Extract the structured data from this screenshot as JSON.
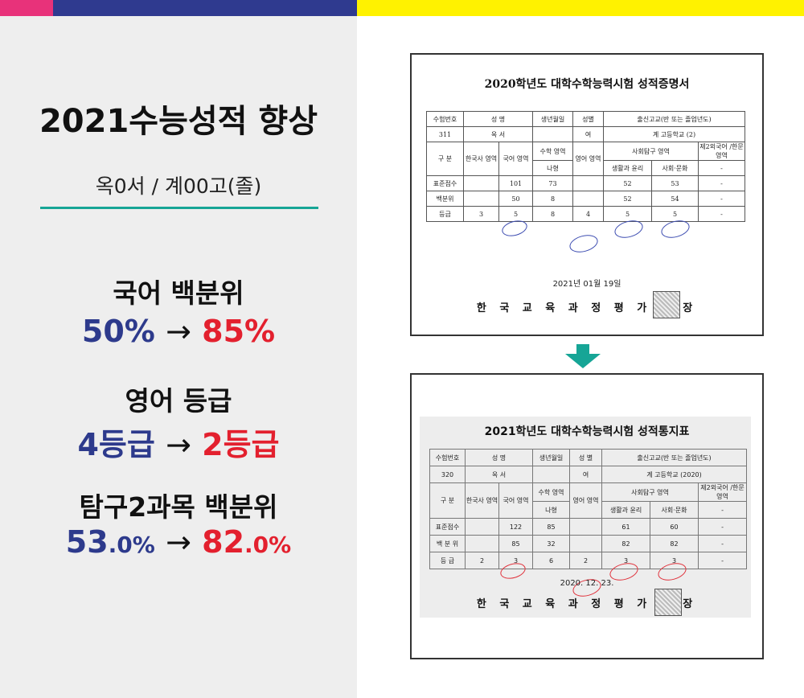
{
  "headline": {
    "title": "2021수능성적 향상",
    "student": "옥0서 / 계00고(졸)"
  },
  "stats": [
    {
      "label": "국어 백분위",
      "from": "50%",
      "arrow": "→",
      "to": "85%"
    },
    {
      "label": "영어 등급",
      "from": "4등급",
      "arrow": "→",
      "to": "2등급"
    },
    {
      "label": "탐구2과목 백분위",
      "from_int": "53",
      "from_dec": ".0%",
      "arrow": "→",
      "to_int": "82",
      "to_dec": ".0%"
    }
  ],
  "colors": {
    "pink": "#e8327a",
    "navy": "#2f3a8f",
    "yellow": "#fff200",
    "teal": "#16a596",
    "from": "#2d3a8c",
    "to": "#e3202e"
  },
  "cert2020": {
    "title": "2020학년도 대학수학능력시험 성적증명서",
    "header": [
      "수험번호",
      "성 명",
      "생년월일",
      "성별",
      "출신고교(반 또는 졸업년도)"
    ],
    "info": [
      "311",
      "옥 서",
      "",
      "여",
      "계 고등학교 (2)"
    ],
    "sub_gubun": "구 분",
    "sub_history": "한국사 영역",
    "sub_korean": "국어 영역",
    "sub_math": "수학 영역",
    "sub_math_type": "나형",
    "sub_english": "영어 영역",
    "sub_social": "사회탐구 영역",
    "sub_social1": "생활과 윤리",
    "sub_social2": "사회·문화",
    "sub_foreign": "제2외국어 /한문 영역",
    "rows": [
      {
        "label": "표준점수",
        "history": "",
        "korean": "101",
        "math": "73",
        "english": "",
        "s1": "52",
        "s2": "53",
        "foreign": "-"
      },
      {
        "label": "백분위",
        "history": "",
        "korean": "50",
        "math": "8",
        "english": "",
        "s1": "52",
        "s2": "54",
        "foreign": "-"
      },
      {
        "label": "등급",
        "history": "3",
        "korean": "5",
        "math": "8",
        "english": "4",
        "s1": "5",
        "s2": "5",
        "foreign": "-"
      }
    ],
    "date": "2021년 01월 19일",
    "org": "한 국 교 육 과 정 평 가 원 장"
  },
  "cert2021": {
    "title": "2021학년도 대학수학능력시험 성적통지표",
    "header": [
      "수험번호",
      "성 명",
      "생년월일",
      "성 별",
      "출신고교(반 또는 졸업년도)"
    ],
    "info": [
      "320",
      "옥 서",
      "",
      "여",
      "계 고등학교 (2020)"
    ],
    "sub_gubun": "구 분",
    "sub_history": "한국사 영역",
    "sub_korean": "국어 영역",
    "sub_math": "수학 영역",
    "sub_math_type": "나형",
    "sub_english": "영어 영역",
    "sub_social": "사회탐구 영역",
    "sub_social1": "생활과 윤리",
    "sub_social2": "사회·문화",
    "sub_foreign": "제2외국어 /한문 영역",
    "rows": [
      {
        "label": "표준점수",
        "history": "",
        "korean": "122",
        "math": "85",
        "english": "",
        "s1": "61",
        "s2": "60",
        "foreign": "-"
      },
      {
        "label": "백 분 위",
        "history": "",
        "korean": "85",
        "math": "32",
        "english": "",
        "s1": "82",
        "s2": "82",
        "foreign": "-"
      },
      {
        "label": "등 급",
        "history": "2",
        "korean": "3",
        "math": "6",
        "english": "2",
        "s1": "3",
        "s2": "3",
        "foreign": "-"
      }
    ],
    "date": "2020. 12. 23.",
    "org": "한 국 교 육 과 정 평 가 원 장"
  }
}
